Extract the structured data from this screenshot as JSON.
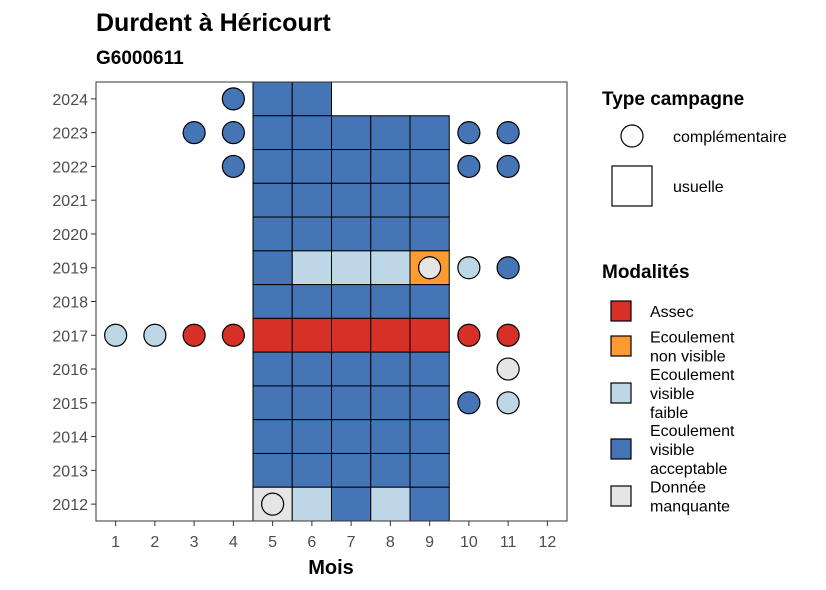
{
  "chart_data": {
    "type": "heatmap",
    "title": "Durdent à Héricourt",
    "subtitle": "G6000611",
    "xlabel": "Mois",
    "ylabel": "",
    "x_ticks": [
      "1",
      "2",
      "3",
      "4",
      "5",
      "6",
      "7",
      "8",
      "9",
      "10",
      "11",
      "12"
    ],
    "y_ticks": [
      "2012",
      "2013",
      "2014",
      "2015",
      "2016",
      "2017",
      "2018",
      "2019",
      "2020",
      "2021",
      "2022",
      "2023",
      "2024"
    ],
    "xlim": [
      0.5,
      12.5
    ],
    "ylim": [
      2011.5,
      2024.5
    ],
    "grid": false,
    "colors": {
      "assec": "#d73027",
      "non_visible": "#fd9a32",
      "faible": "#bdd7e7",
      "acceptable": "#4575b4",
      "manquante": "#e5e5e5"
    },
    "legend_shape": {
      "title": "Type campagne",
      "items": [
        {
          "label": "complémentaire",
          "shape": "circle"
        },
        {
          "label": "usuelle",
          "shape": "square"
        }
      ]
    },
    "legend_color": {
      "title": "Modalités",
      "items": [
        {
          "key": "assec",
          "lines": [
            "Assec"
          ]
        },
        {
          "key": "non_visible",
          "lines": [
            "Ecoulement",
            "non visible"
          ]
        },
        {
          "key": "faible",
          "lines": [
            "Ecoulement",
            "visible",
            "faible"
          ]
        },
        {
          "key": "acceptable",
          "lines": [
            "Ecoulement",
            "visible",
            "acceptable"
          ]
        },
        {
          "key": "manquante",
          "lines": [
            "Donnée",
            "manquante"
          ]
        }
      ]
    },
    "usuelle": [
      {
        "year": 2024,
        "month": 5,
        "value": "acceptable"
      },
      {
        "year": 2024,
        "month": 6,
        "value": "acceptable"
      },
      {
        "year": 2023,
        "month": 5,
        "value": "acceptable"
      },
      {
        "year": 2023,
        "month": 6,
        "value": "acceptable"
      },
      {
        "year": 2023,
        "month": 7,
        "value": "acceptable"
      },
      {
        "year": 2023,
        "month": 8,
        "value": "acceptable"
      },
      {
        "year": 2023,
        "month": 9,
        "value": "acceptable"
      },
      {
        "year": 2022,
        "month": 5,
        "value": "acceptable"
      },
      {
        "year": 2022,
        "month": 6,
        "value": "acceptable"
      },
      {
        "year": 2022,
        "month": 7,
        "value": "acceptable"
      },
      {
        "year": 2022,
        "month": 8,
        "value": "acceptable"
      },
      {
        "year": 2022,
        "month": 9,
        "value": "acceptable"
      },
      {
        "year": 2021,
        "month": 5,
        "value": "acceptable"
      },
      {
        "year": 2021,
        "month": 6,
        "value": "acceptable"
      },
      {
        "year": 2021,
        "month": 7,
        "value": "acceptable"
      },
      {
        "year": 2021,
        "month": 8,
        "value": "acceptable"
      },
      {
        "year": 2021,
        "month": 9,
        "value": "acceptable"
      },
      {
        "year": 2020,
        "month": 5,
        "value": "acceptable"
      },
      {
        "year": 2020,
        "month": 6,
        "value": "acceptable"
      },
      {
        "year": 2020,
        "month": 7,
        "value": "acceptable"
      },
      {
        "year": 2020,
        "month": 8,
        "value": "acceptable"
      },
      {
        "year": 2020,
        "month": 9,
        "value": "acceptable"
      },
      {
        "year": 2019,
        "month": 5,
        "value": "acceptable"
      },
      {
        "year": 2019,
        "month": 6,
        "value": "faible"
      },
      {
        "year": 2019,
        "month": 7,
        "value": "faible"
      },
      {
        "year": 2019,
        "month": 8,
        "value": "faible"
      },
      {
        "year": 2019,
        "month": 9,
        "value": "non_visible"
      },
      {
        "year": 2018,
        "month": 5,
        "value": "acceptable"
      },
      {
        "year": 2018,
        "month": 6,
        "value": "acceptable"
      },
      {
        "year": 2018,
        "month": 7,
        "value": "acceptable"
      },
      {
        "year": 2018,
        "month": 8,
        "value": "acceptable"
      },
      {
        "year": 2018,
        "month": 9,
        "value": "acceptable"
      },
      {
        "year": 2017,
        "month": 5,
        "value": "assec"
      },
      {
        "year": 2017,
        "month": 6,
        "value": "assec"
      },
      {
        "year": 2017,
        "month": 7,
        "value": "assec"
      },
      {
        "year": 2017,
        "month": 8,
        "value": "assec"
      },
      {
        "year": 2017,
        "month": 9,
        "value": "assec"
      },
      {
        "year": 2016,
        "month": 5,
        "value": "acceptable"
      },
      {
        "year": 2016,
        "month": 6,
        "value": "acceptable"
      },
      {
        "year": 2016,
        "month": 7,
        "value": "acceptable"
      },
      {
        "year": 2016,
        "month": 8,
        "value": "acceptable"
      },
      {
        "year": 2016,
        "month": 9,
        "value": "acceptable"
      },
      {
        "year": 2015,
        "month": 5,
        "value": "acceptable"
      },
      {
        "year": 2015,
        "month": 6,
        "value": "acceptable"
      },
      {
        "year": 2015,
        "month": 7,
        "value": "acceptable"
      },
      {
        "year": 2015,
        "month": 8,
        "value": "acceptable"
      },
      {
        "year": 2015,
        "month": 9,
        "value": "acceptable"
      },
      {
        "year": 2014,
        "month": 5,
        "value": "acceptable"
      },
      {
        "year": 2014,
        "month": 6,
        "value": "acceptable"
      },
      {
        "year": 2014,
        "month": 7,
        "value": "acceptable"
      },
      {
        "year": 2014,
        "month": 8,
        "value": "acceptable"
      },
      {
        "year": 2014,
        "month": 9,
        "value": "acceptable"
      },
      {
        "year": 2013,
        "month": 5,
        "value": "acceptable"
      },
      {
        "year": 2013,
        "month": 6,
        "value": "acceptable"
      },
      {
        "year": 2013,
        "month": 7,
        "value": "acceptable"
      },
      {
        "year": 2013,
        "month": 8,
        "value": "acceptable"
      },
      {
        "year": 2013,
        "month": 9,
        "value": "acceptable"
      },
      {
        "year": 2012,
        "month": 5,
        "value": "manquante"
      },
      {
        "year": 2012,
        "month": 6,
        "value": "faible"
      },
      {
        "year": 2012,
        "month": 7,
        "value": "acceptable"
      },
      {
        "year": 2012,
        "month": 8,
        "value": "faible"
      },
      {
        "year": 2012,
        "month": 9,
        "value": "acceptable"
      }
    ],
    "complementaire": [
      {
        "year": 2024,
        "month": 4,
        "value": "acceptable"
      },
      {
        "year": 2023,
        "month": 3,
        "value": "acceptable"
      },
      {
        "year": 2023,
        "month": 4,
        "value": "acceptable"
      },
      {
        "year": 2023,
        "month": 10,
        "value": "acceptable"
      },
      {
        "year": 2023,
        "month": 11,
        "value": "acceptable"
      },
      {
        "year": 2022,
        "month": 4,
        "value": "acceptable"
      },
      {
        "year": 2022,
        "month": 10,
        "value": "acceptable"
      },
      {
        "year": 2022,
        "month": 11,
        "value": "acceptable"
      },
      {
        "year": 2019,
        "month": 9,
        "value": "manquante"
      },
      {
        "year": 2019,
        "month": 10,
        "value": "faible"
      },
      {
        "year": 2019,
        "month": 11,
        "value": "acceptable"
      },
      {
        "year": 2017,
        "month": 1,
        "value": "faible"
      },
      {
        "year": 2017,
        "month": 2,
        "value": "faible"
      },
      {
        "year": 2017,
        "month": 3,
        "value": "assec"
      },
      {
        "year": 2017,
        "month": 4,
        "value": "assec"
      },
      {
        "year": 2017,
        "month": 10,
        "value": "assec"
      },
      {
        "year": 2017,
        "month": 11,
        "value": "assec"
      },
      {
        "year": 2016,
        "month": 11,
        "value": "manquante"
      },
      {
        "year": 2015,
        "month": 10,
        "value": "acceptable"
      },
      {
        "year": 2015,
        "month": 11,
        "value": "faible"
      },
      {
        "year": 2012,
        "month": 5,
        "value": "manquante"
      }
    ]
  }
}
